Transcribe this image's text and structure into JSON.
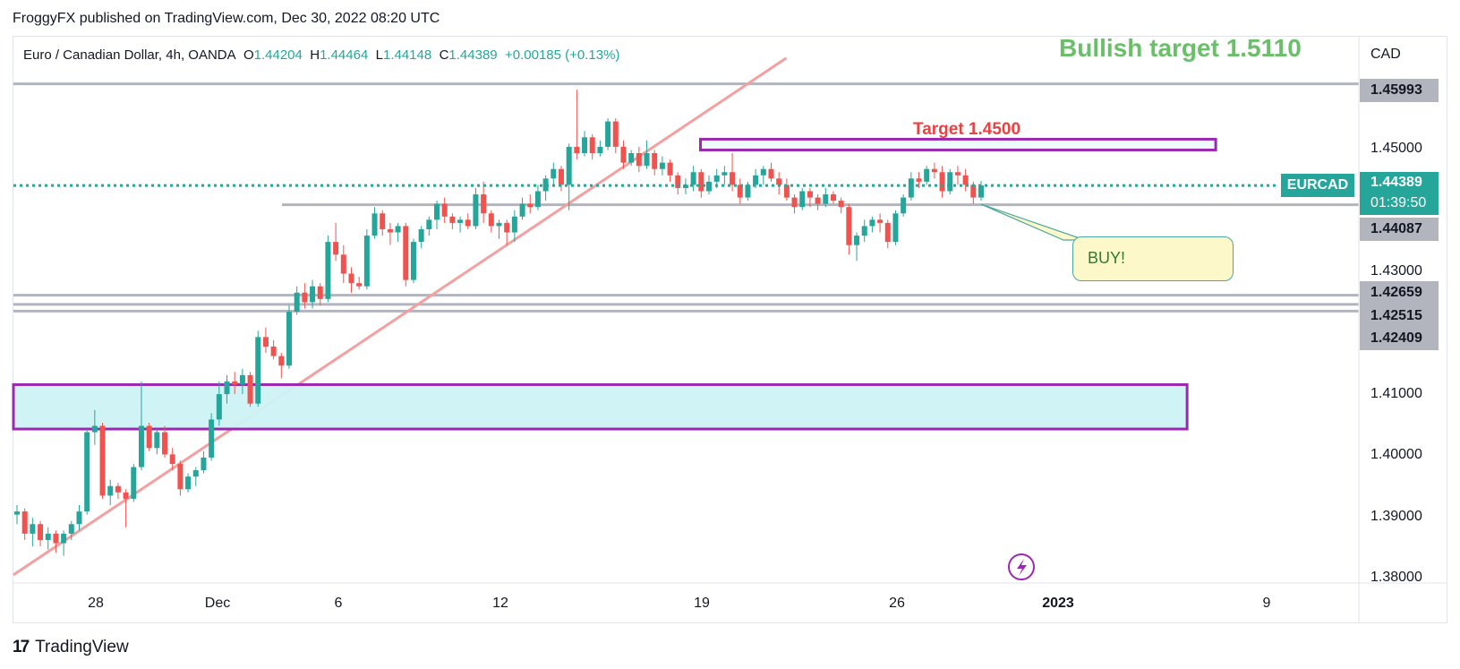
{
  "publisher_line": "FroggyFX published on TradingView.com, Dec 30, 2022 08:20 UTC",
  "ohlc": {
    "symbol_desc": "Euro / Canadian Dollar, 4h, OANDA",
    "o_label": "O",
    "o": "1.44204",
    "h_label": "H",
    "h": "1.44464",
    "l_label": "L",
    "l": "1.44148",
    "c_label": "C",
    "c": "1.44389",
    "change": "+0.00185 (+0.13%)"
  },
  "annotations": {
    "bullish_target": "Bullish target 1.5110",
    "target": "Target 1.4500",
    "buy_callout": "BUY!"
  },
  "price_axis": {
    "currency": "CAD",
    "ticks": [
      "1.45000",
      "1.43000",
      "1.41000",
      "1.40000",
      "1.39000",
      "1.38000"
    ],
    "level_labels": [
      "1.45993",
      "1.44087",
      "1.42659",
      "1.42515",
      "1.42409"
    ],
    "current_symbol": "EURCAD",
    "current_price": "1.44389",
    "countdown": "01:39:50"
  },
  "time_axis": {
    "ticks": [
      "28",
      "Dec",
      "6",
      "12",
      "19",
      "26",
      "2023",
      "9"
    ]
  },
  "brand": {
    "logo": "17",
    "name": "TradingView"
  },
  "colors": {
    "up": "#26a69a",
    "down": "#ef5350",
    "level": "#b2b5be",
    "trendline": "#f4a0a0",
    "zone_fill": "#cdf3f6",
    "zone_border": "#9c27b0",
    "bull_text": "#6abf69",
    "target_text": "#e84343"
  },
  "chart_data": {
    "type": "candlestick",
    "symbol": "EURCAD",
    "timeframe": "4h",
    "x_range": [
      "2022-11-25",
      "2023-01-11"
    ],
    "ylim": [
      1.375,
      1.4675
    ],
    "horizontal_levels": [
      1.45993,
      1.44087,
      1.42659,
      1.42515,
      1.42409
    ],
    "current_price": 1.44389,
    "trendline": {
      "from": [
        "2022-11-25",
        1.3825
      ],
      "to": [
        "2022-12-22",
        1.464
      ]
    },
    "zones": [
      {
        "name": "target-zone",
        "from": "2022-12-19",
        "to": "2023-01-06",
        "low": 1.4495,
        "high": 1.4512
      },
      {
        "name": "demand-zone",
        "from": "2022-11-25",
        "to": "2023-01-05",
        "low": 1.4055,
        "high": 1.4125
      }
    ],
    "candles": [
      [
        1.392,
        1.3935,
        1.3905,
        1.3925
      ],
      [
        1.3925,
        1.393,
        1.388,
        1.389
      ],
      [
        1.389,
        1.3915,
        1.387,
        1.3905
      ],
      [
        1.3905,
        1.391,
        1.387,
        1.388
      ],
      [
        1.388,
        1.39,
        1.3865,
        1.389
      ],
      [
        1.389,
        1.3895,
        1.386,
        1.3875
      ],
      [
        1.3875,
        1.3895,
        1.3855,
        1.389
      ],
      [
        1.389,
        1.391,
        1.388,
        1.3905
      ],
      [
        1.3905,
        1.3935,
        1.3895,
        1.3925
      ],
      [
        1.3925,
        1.4055,
        1.392,
        1.405
      ],
      [
        1.405,
        1.4085,
        1.403,
        1.406
      ],
      [
        1.406,
        1.4065,
        1.3945,
        1.395
      ],
      [
        1.395,
        1.3975,
        1.3935,
        1.3965
      ],
      [
        1.3965,
        1.397,
        1.3945,
        1.3955
      ],
      [
        1.3955,
        1.396,
        1.39,
        1.3945
      ],
      [
        1.3945,
        1.4,
        1.394,
        1.3995
      ],
      [
        1.3995,
        1.413,
        1.399,
        1.406
      ],
      [
        1.406,
        1.4065,
        1.402,
        1.4025
      ],
      [
        1.4025,
        1.4055,
        1.4015,
        1.405
      ],
      [
        1.405,
        1.406,
        1.401,
        1.4015
      ],
      [
        1.4015,
        1.4025,
        1.399,
        1.4
      ],
      [
        1.4,
        1.4005,
        1.395,
        1.396
      ],
      [
        1.396,
        1.3985,
        1.3955,
        1.398
      ],
      [
        1.398,
        1.3995,
        1.3965,
        1.399
      ],
      [
        1.399,
        1.402,
        1.3985,
        1.401
      ],
      [
        1.401,
        1.408,
        1.4005,
        1.407
      ],
      [
        1.407,
        1.413,
        1.406,
        1.411
      ],
      [
        1.411,
        1.414,
        1.4095,
        1.413
      ],
      [
        1.413,
        1.4145,
        1.411,
        1.4125
      ],
      [
        1.4125,
        1.415,
        1.411,
        1.414
      ],
      [
        1.414,
        1.4145,
        1.409,
        1.4095
      ],
      [
        1.4095,
        1.421,
        1.409,
        1.42
      ],
      [
        1.42,
        1.4215,
        1.4175,
        1.4185
      ],
      [
        1.4185,
        1.4195,
        1.4165,
        1.417
      ],
      [
        1.417,
        1.4175,
        1.4135,
        1.4155
      ],
      [
        1.4155,
        1.425,
        1.415,
        1.424
      ],
      [
        1.424,
        1.428,
        1.4235,
        1.427
      ],
      [
        1.427,
        1.4285,
        1.4245,
        1.4255
      ],
      [
        1.4255,
        1.429,
        1.4245,
        1.428
      ],
      [
        1.428,
        1.4285,
        1.425,
        1.426
      ],
      [
        1.426,
        1.436,
        1.4255,
        1.435
      ],
      [
        1.435,
        1.438,
        1.432,
        1.433
      ],
      [
        1.433,
        1.4345,
        1.4285,
        1.43
      ],
      [
        1.43,
        1.431,
        1.427,
        1.4285
      ],
      [
        1.4285,
        1.4295,
        1.4275,
        1.428
      ],
      [
        1.428,
        1.437,
        1.4275,
        1.436
      ],
      [
        1.436,
        1.4405,
        1.4355,
        1.4395
      ],
      [
        1.4395,
        1.44,
        1.436,
        1.437
      ],
      [
        1.437,
        1.438,
        1.4345,
        1.4365
      ],
      [
        1.4365,
        1.438,
        1.435,
        1.4375
      ],
      [
        1.4375,
        1.438,
        1.428,
        1.429
      ],
      [
        1.429,
        1.4355,
        1.4285,
        1.435
      ],
      [
        1.435,
        1.4375,
        1.434,
        1.437
      ],
      [
        1.437,
        1.439,
        1.436,
        1.4385
      ],
      [
        1.4385,
        1.4415,
        1.437,
        1.441
      ],
      [
        1.441,
        1.442,
        1.438,
        1.439
      ],
      [
        1.439,
        1.4395,
        1.437,
        1.438
      ],
      [
        1.438,
        1.439,
        1.4365,
        1.4385
      ],
      [
        1.4385,
        1.4395,
        1.437,
        1.4375
      ],
      [
        1.4375,
        1.4435,
        1.437,
        1.4425
      ],
      [
        1.4425,
        1.4445,
        1.438,
        1.4395
      ],
      [
        1.4395,
        1.44,
        1.4365,
        1.4375
      ],
      [
        1.4375,
        1.4385,
        1.4355,
        1.438
      ],
      [
        1.438,
        1.4385,
        1.4345,
        1.4365
      ],
      [
        1.4365,
        1.44,
        1.435,
        1.439
      ],
      [
        1.439,
        1.442,
        1.4385,
        1.441
      ],
      [
        1.441,
        1.4425,
        1.4395,
        1.4405
      ],
      [
        1.4405,
        1.444,
        1.44,
        1.443
      ],
      [
        1.443,
        1.4455,
        1.4415,
        1.445
      ],
      [
        1.445,
        1.4475,
        1.444,
        1.4465
      ],
      [
        1.4465,
        1.447,
        1.443,
        1.444
      ],
      [
        1.444,
        1.4505,
        1.44,
        1.45
      ],
      [
        1.45,
        1.459,
        1.448,
        1.449
      ],
      [
        1.449,
        1.4525,
        1.4485,
        1.4515
      ],
      [
        1.4515,
        1.452,
        1.448,
        1.449
      ],
      [
        1.449,
        1.451,
        1.4485,
        1.45
      ],
      [
        1.45,
        1.4545,
        1.4495,
        1.454
      ],
      [
        1.454,
        1.4545,
        1.449,
        1.45
      ],
      [
        1.45,
        1.451,
        1.4465,
        1.4475
      ],
      [
        1.4475,
        1.4495,
        1.447,
        1.449
      ],
      [
        1.449,
        1.45,
        1.446,
        1.447
      ],
      [
        1.447,
        1.451,
        1.4465,
        1.449
      ],
      [
        1.449,
        1.4495,
        1.4455,
        1.4465
      ],
      [
        1.4465,
        1.4485,
        1.4455,
        1.4475
      ],
      [
        1.4475,
        1.448,
        1.4445,
        1.4455
      ],
      [
        1.4455,
        1.446,
        1.4425,
        1.4435
      ],
      [
        1.4435,
        1.445,
        1.4425,
        1.444
      ],
      [
        1.444,
        1.447,
        1.443,
        1.446
      ],
      [
        1.446,
        1.4465,
        1.442,
        1.443
      ],
      [
        1.443,
        1.4455,
        1.4425,
        1.4445
      ],
      [
        1.4445,
        1.4465,
        1.4435,
        1.4455
      ],
      [
        1.4455,
        1.447,
        1.444,
        1.446
      ],
      [
        1.446,
        1.449,
        1.443,
        1.444
      ],
      [
        1.444,
        1.445,
        1.441,
        1.442
      ],
      [
        1.442,
        1.4445,
        1.4415,
        1.444
      ],
      [
        1.444,
        1.4465,
        1.4435,
        1.4455
      ],
      [
        1.4455,
        1.447,
        1.444,
        1.4465
      ],
      [
        1.4465,
        1.4475,
        1.4445,
        1.445
      ],
      [
        1.445,
        1.446,
        1.4425,
        1.444
      ],
      [
        1.444,
        1.445,
        1.4415,
        1.442
      ],
      [
        1.442,
        1.4425,
        1.4395,
        1.4405
      ],
      [
        1.4405,
        1.4435,
        1.44,
        1.443
      ],
      [
        1.443,
        1.4435,
        1.4405,
        1.442
      ],
      [
        1.442,
        1.4425,
        1.44,
        1.441
      ],
      [
        1.441,
        1.4435,
        1.4405,
        1.4425
      ],
      [
        1.4425,
        1.443,
        1.441,
        1.4415
      ],
      [
        1.4415,
        1.442,
        1.4395,
        1.4405
      ],
      [
        1.4405,
        1.441,
        1.433,
        1.4345
      ],
      [
        1.4345,
        1.4365,
        1.432,
        1.436
      ],
      [
        1.436,
        1.4385,
        1.435,
        1.4375
      ],
      [
        1.4375,
        1.439,
        1.4365,
        1.4385
      ],
      [
        1.4385,
        1.4395,
        1.4365,
        1.438
      ],
      [
        1.438,
        1.4385,
        1.434,
        1.435
      ],
      [
        1.435,
        1.44,
        1.4345,
        1.4395
      ],
      [
        1.4395,
        1.4425,
        1.439,
        1.442
      ],
      [
        1.442,
        1.446,
        1.4415,
        1.445
      ],
      [
        1.445,
        1.446,
        1.4435,
        1.4445
      ],
      [
        1.4445,
        1.447,
        1.444,
        1.4465
      ],
      [
        1.4465,
        1.4475,
        1.445,
        1.446
      ],
      [
        1.446,
        1.447,
        1.442,
        1.443
      ],
      [
        1.443,
        1.4465,
        1.4425,
        1.446
      ],
      [
        1.446,
        1.447,
        1.444,
        1.4455
      ],
      [
        1.4455,
        1.4465,
        1.443,
        1.444
      ],
      [
        1.444,
        1.4445,
        1.441,
        1.442
      ],
      [
        1.442,
        1.4446,
        1.4415,
        1.4439
      ]
    ]
  }
}
